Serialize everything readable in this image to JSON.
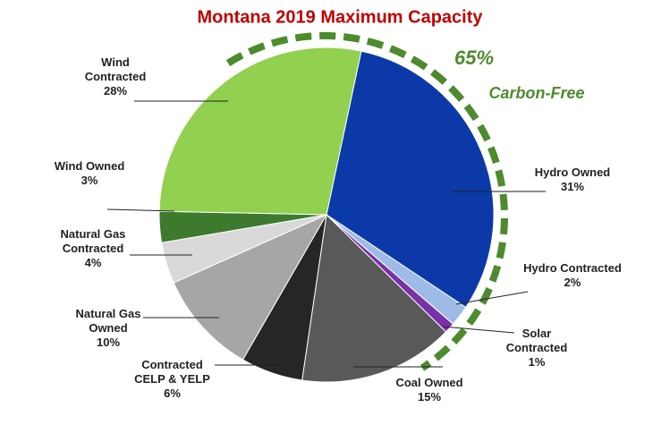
{
  "chart_data": {
    "type": "pie",
    "title": "Montana 2019 Maximum Capacity",
    "categories": [
      "Hydro Owned",
      "Hydro Contracted",
      "Solar Contracted",
      "Coal Owned",
      "Contracted CELP & YELP",
      "Natural Gas Owned",
      "Natural Gas Contracted",
      "Wind Owned",
      "Wind Contracted"
    ],
    "values": [
      31,
      2,
      1,
      15,
      6,
      10,
      4,
      3,
      28
    ],
    "value_labels": [
      "31%",
      "2%",
      "1%",
      "15%",
      "6%",
      "10%",
      "4%",
      "3%",
      "28%"
    ],
    "colors": [
      "#0b3aa8",
      "#9dbbe6",
      "#7a30a8",
      "#595959",
      "#262626",
      "#a6a6a6",
      "#d9d9d9",
      "#3d7a2e",
      "#92d050"
    ],
    "annotations": [
      "65%",
      "Carbon-Free"
    ]
  }
}
